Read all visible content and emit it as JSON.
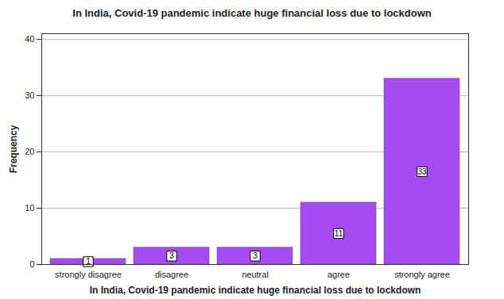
{
  "chart_data": {
    "type": "bar",
    "title": "In India, Covid-19 pandemic indicate huge financial loss due to lockdown",
    "x_label": "In India, Covid-19 pandemic indicate huge financial loss due to lockdown",
    "y_label": "Frequency",
    "categories": [
      "strongly disagree",
      "disagree",
      "neutral",
      "agree",
      "strongly agree"
    ],
    "values": [
      1,
      3,
      3,
      11,
      33
    ],
    "color": "#a64bf4",
    "ylim": [
      0,
      41
    ],
    "yticks": [
      0,
      10,
      20,
      30,
      40
    ],
    "grid": true,
    "data_labels": true
  }
}
